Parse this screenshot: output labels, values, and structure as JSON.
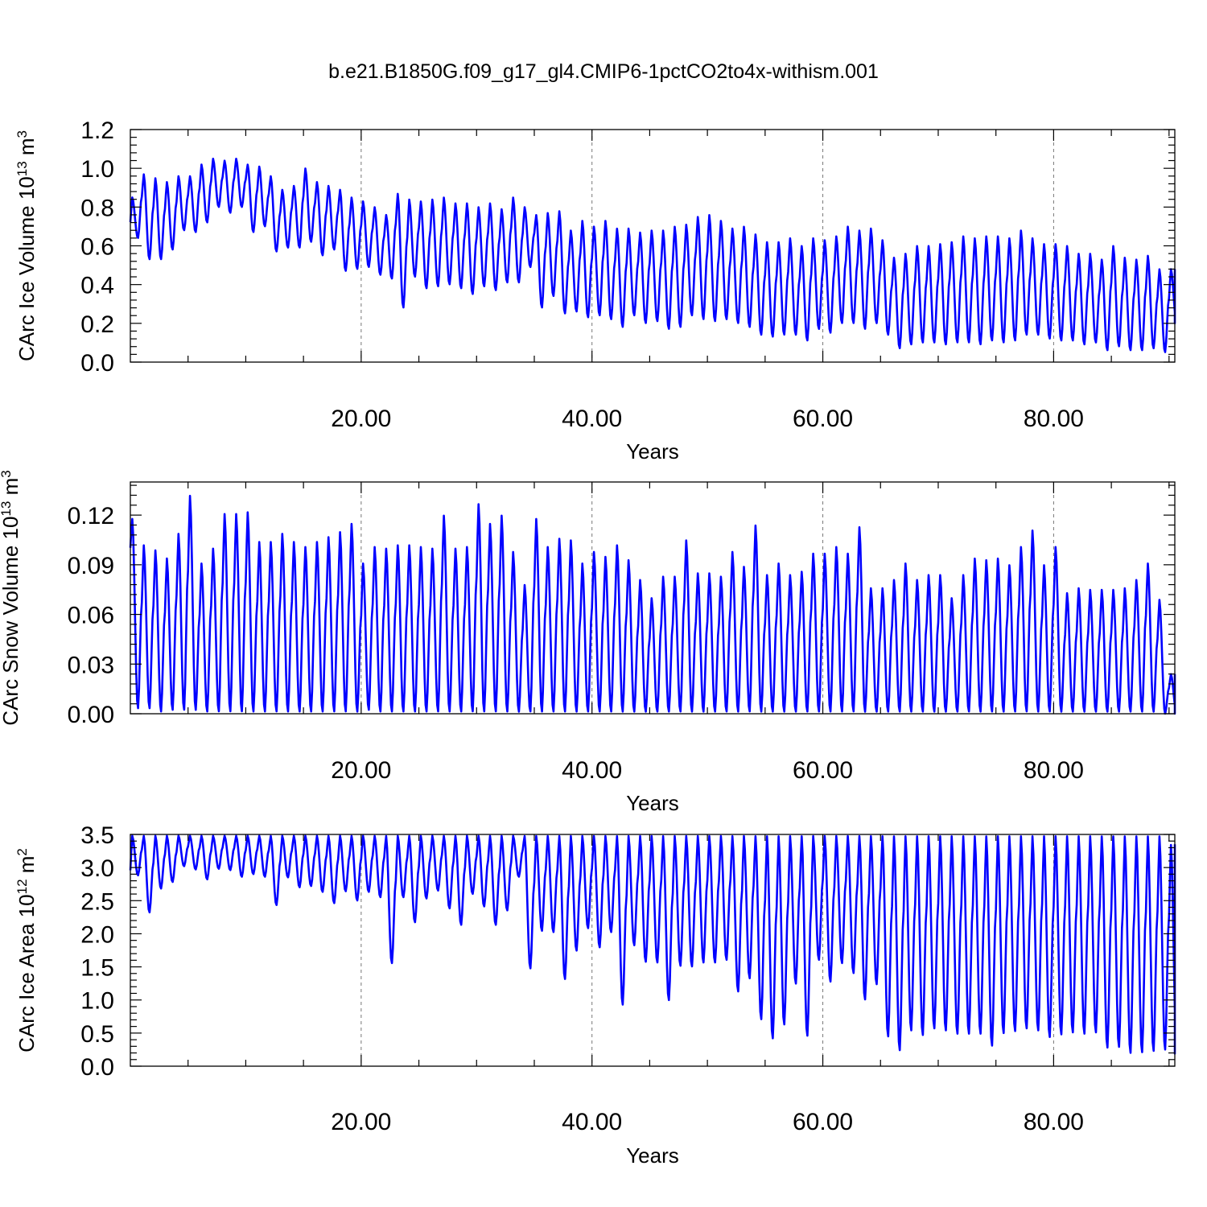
{
  "title": "b.e21.B1850G.f09_g17_gl4.CMIP6-1pctCO2to4x-withism.001",
  "chart_data": [
    {
      "type": "line",
      "ylabel": "CArc Ice Volume 10",
      "ylabel_exp": "13",
      "ylabel_unit": " m",
      "ylabel_unit_exp": "3",
      "xlabel": "Years",
      "xlim": [
        0,
        90.5
      ],
      "ylim": [
        0,
        1.2
      ],
      "xticks": [
        20,
        40,
        60,
        80
      ],
      "xtick_labels": [
        "20.00",
        "40.00",
        "60.00",
        "80.00"
      ],
      "yticks": [
        0,
        0.2,
        0.4,
        0.6,
        0.8,
        1.0,
        1.2
      ],
      "ytick_labels": [
        "0.0",
        "0.2",
        "0.4",
        "0.6",
        "0.8",
        "1.0",
        "1.2"
      ],
      "grid": "dashed vertical at major x ticks",
      "color": "#0000ff",
      "series": [
        {
          "x": [
            0,
            1,
            2,
            3,
            4,
            5,
            6,
            7,
            8,
            9,
            10,
            11,
            12,
            13,
            14,
            15,
            16,
            17,
            18,
            19,
            20,
            21,
            22,
            23,
            24,
            25,
            26,
            27,
            28,
            29,
            30,
            31,
            32,
            33,
            34,
            35,
            36,
            37,
            38,
            39,
            40,
            41,
            42,
            43,
            44,
            45,
            46,
            47,
            48,
            49,
            50,
            51,
            52,
            53,
            54,
            55,
            56,
            57,
            58,
            59,
            60,
            61,
            62,
            63,
            64,
            65,
            66,
            67,
            68,
            69,
            70,
            71,
            72,
            73,
            74,
            75,
            76,
            77,
            78,
            79,
            80,
            81,
            82,
            83,
            84,
            85,
            86,
            87,
            88,
            89,
            90
          ],
          "annual_max": [
            0.85,
            0.97,
            0.95,
            0.93,
            0.96,
            0.96,
            1.02,
            1.05,
            1.04,
            1.05,
            1.02,
            1.01,
            0.96,
            0.89,
            0.91,
            1.0,
            0.93,
            0.91,
            0.89,
            0.85,
            0.83,
            0.8,
            0.76,
            0.87,
            0.84,
            0.83,
            0.84,
            0.85,
            0.82,
            0.82,
            0.8,
            0.82,
            0.79,
            0.85,
            0.8,
            0.76,
            0.77,
            0.78,
            0.68,
            0.73,
            0.7,
            0.73,
            0.69,
            0.69,
            0.67,
            0.68,
            0.68,
            0.7,
            0.71,
            0.75,
            0.76,
            0.73,
            0.69,
            0.7,
            0.66,
            0.62,
            0.62,
            0.64,
            0.6,
            0.64,
            0.63,
            0.65,
            0.7,
            0.68,
            0.69,
            0.63,
            0.54,
            0.56,
            0.6,
            0.6,
            0.61,
            0.62,
            0.65,
            0.64,
            0.65,
            0.65,
            0.64,
            0.68,
            0.64,
            0.61,
            0.61,
            0.6,
            0.56,
            0.56,
            0.53,
            0.6,
            0.54,
            0.53,
            0.55,
            0.48,
            0.48
          ],
          "annual_min": [
            0.64,
            0.53,
            0.53,
            0.58,
            0.68,
            0.67,
            0.72,
            0.8,
            0.77,
            0.8,
            0.67,
            0.7,
            0.57,
            0.59,
            0.59,
            0.62,
            0.55,
            0.58,
            0.47,
            0.48,
            0.49,
            0.45,
            0.43,
            0.28,
            0.44,
            0.38,
            0.39,
            0.4,
            0.38,
            0.35,
            0.39,
            0.37,
            0.41,
            0.41,
            0.49,
            0.28,
            0.34,
            0.25,
            0.26,
            0.23,
            0.24,
            0.22,
            0.18,
            0.24,
            0.2,
            0.21,
            0.17,
            0.18,
            0.24,
            0.22,
            0.21,
            0.22,
            0.2,
            0.18,
            0.14,
            0.13,
            0.14,
            0.14,
            0.11,
            0.17,
            0.15,
            0.2,
            0.2,
            0.17,
            0.2,
            0.14,
            0.07,
            0.09,
            0.1,
            0.1,
            0.09,
            0.1,
            0.1,
            0.09,
            0.11,
            0.1,
            0.11,
            0.14,
            0.14,
            0.12,
            0.11,
            0.11,
            0.09,
            0.1,
            0.06,
            0.08,
            0.06,
            0.06,
            0.07,
            0.05,
            0.2
          ]
        }
      ]
    },
    {
      "type": "line",
      "ylabel": "CArc Snow Volume 10",
      "ylabel_exp": "13",
      "ylabel_unit": " m",
      "ylabel_unit_exp": "3",
      "xlabel": "Years",
      "xlim": [
        0,
        90.5
      ],
      "ylim": [
        0,
        0.14
      ],
      "xticks": [
        20,
        40,
        60,
        80
      ],
      "xtick_labels": [
        "20.00",
        "40.00",
        "60.00",
        "80.00"
      ],
      "yticks": [
        0,
        0.03,
        0.06,
        0.09,
        0.12
      ],
      "ytick_labels": [
        "0.00",
        "0.03",
        "0.06",
        "0.09",
        "0.12"
      ],
      "grid": "dashed vertical at major x ticks",
      "color": "#0000ff",
      "series": [
        {
          "x": [
            0,
            1,
            2,
            3,
            4,
            5,
            6,
            7,
            8,
            9,
            10,
            11,
            12,
            13,
            14,
            15,
            16,
            17,
            18,
            19,
            20,
            21,
            22,
            23,
            24,
            25,
            26,
            27,
            28,
            29,
            30,
            31,
            32,
            33,
            34,
            35,
            36,
            37,
            38,
            39,
            40,
            41,
            42,
            43,
            44,
            45,
            46,
            47,
            48,
            49,
            50,
            51,
            52,
            53,
            54,
            55,
            56,
            57,
            58,
            59,
            60,
            61,
            62,
            63,
            64,
            65,
            66,
            67,
            68,
            69,
            70,
            71,
            72,
            73,
            74,
            75,
            76,
            77,
            78,
            79,
            80,
            81,
            82,
            83,
            84,
            85,
            86,
            87,
            88,
            89,
            90
          ],
          "annual_max": [
            0.118,
            0.102,
            0.099,
            0.094,
            0.109,
            0.132,
            0.091,
            0.1,
            0.121,
            0.121,
            0.122,
            0.104,
            0.104,
            0.109,
            0.104,
            0.101,
            0.104,
            0.107,
            0.11,
            0.115,
            0.091,
            0.101,
            0.1,
            0.102,
            0.102,
            0.101,
            0.1,
            0.12,
            0.1,
            0.101,
            0.127,
            0.115,
            0.12,
            0.098,
            0.078,
            0.118,
            0.101,
            0.106,
            0.105,
            0.091,
            0.098,
            0.095,
            0.102,
            0.093,
            0.081,
            0.07,
            0.083,
            0.083,
            0.105,
            0.085,
            0.085,
            0.083,
            0.098,
            0.089,
            0.114,
            0.084,
            0.091,
            0.084,
            0.086,
            0.097,
            0.097,
            0.101,
            0.097,
            0.113,
            0.076,
            0.076,
            0.081,
            0.091,
            0.081,
            0.084,
            0.084,
            0.07,
            0.084,
            0.094,
            0.093,
            0.094,
            0.09,
            0.101,
            0.111,
            0.09,
            0.101,
            0.073,
            0.076,
            0.075,
            0.075,
            0.075,
            0.076,
            0.081,
            0.091,
            0.069,
            0.024
          ],
          "annual_min": [
            0.003,
            0.003,
            0.001,
            0.002,
            0.002,
            0.002,
            0.001,
            0.001,
            0.001,
            0.001,
            0.001,
            0.001,
            0.001,
            0.001,
            0.001,
            0.001,
            0.001,
            0.001,
            0.001,
            0.001,
            0.002,
            0.001,
            0.001,
            0.001,
            0.001,
            0.001,
            0.001,
            0.001,
            0.001,
            0.001,
            0.001,
            0.001,
            0.001,
            0.001,
            0.001,
            0.001,
            0.001,
            0.001,
            0.001,
            0.001,
            0.001,
            0.001,
            0.001,
            0.001,
            0.001,
            0.001,
            0.001,
            0.001,
            0.001,
            0.001,
            0.001,
            0.001,
            0.001,
            0.001,
            0.001,
            0.001,
            0.001,
            0.001,
            0.001,
            0.001,
            0.001,
            0.001,
            0.001,
            0.001,
            0.001,
            0.001,
            0.001,
            0.001,
            0.001,
            0.001,
            0.001,
            0.001,
            0.001,
            0.001,
            0.001,
            0.001,
            0.001,
            0.001,
            0.001,
            0.001,
            0.001,
            0.001,
            0.001,
            0.001,
            0.001,
            0.001,
            0.001,
            0.001,
            0.001,
            0.0,
            0.0
          ]
        }
      ]
    },
    {
      "type": "line",
      "ylabel": "CArc Ice Area 10",
      "ylabel_exp": "12",
      "ylabel_unit": " m",
      "ylabel_unit_exp": "2",
      "xlabel": "Years",
      "xlim": [
        0,
        90.5
      ],
      "ylim": [
        0,
        3.5
      ],
      "xticks": [
        20,
        40,
        60,
        80
      ],
      "xtick_labels": [
        "20.00",
        "40.00",
        "60.00",
        "80.00"
      ],
      "yticks": [
        0,
        0.5,
        1.0,
        1.5,
        2.0,
        2.5,
        3.0,
        3.5
      ],
      "ytick_labels": [
        "0.0",
        "0.5",
        "1.0",
        "1.5",
        "2.0",
        "2.5",
        "3.0",
        "3.5"
      ],
      "grid": "dashed vertical at major x ticks",
      "color": "#0000ff",
      "series": [
        {
          "x": [
            0,
            1,
            2,
            3,
            4,
            5,
            6,
            7,
            8,
            9,
            10,
            11,
            12,
            13,
            14,
            15,
            16,
            17,
            18,
            19,
            20,
            21,
            22,
            23,
            24,
            25,
            26,
            27,
            28,
            29,
            30,
            31,
            32,
            33,
            34,
            35,
            36,
            37,
            38,
            39,
            40,
            41,
            42,
            43,
            44,
            45,
            46,
            47,
            48,
            49,
            50,
            51,
            52,
            53,
            54,
            55,
            56,
            57,
            58,
            59,
            60,
            61,
            62,
            63,
            64,
            65,
            66,
            67,
            68,
            69,
            70,
            71,
            72,
            73,
            74,
            75,
            76,
            77,
            78,
            79,
            80,
            81,
            82,
            83,
            84,
            85,
            86,
            87,
            88,
            89,
            90
          ],
          "annual_max": [
            3.48,
            3.48,
            3.48,
            3.48,
            3.48,
            3.48,
            3.48,
            3.48,
            3.48,
            3.48,
            3.48,
            3.48,
            3.48,
            3.48,
            3.48,
            3.48,
            3.48,
            3.48,
            3.48,
            3.48,
            3.48,
            3.48,
            3.48,
            3.48,
            3.48,
            3.48,
            3.48,
            3.48,
            3.48,
            3.48,
            3.48,
            3.48,
            3.48,
            3.48,
            3.48,
            3.48,
            3.48,
            3.48,
            3.48,
            3.48,
            3.48,
            3.48,
            3.48,
            3.48,
            3.48,
            3.48,
            3.48,
            3.48,
            3.48,
            3.48,
            3.48,
            3.48,
            3.48,
            3.48,
            3.48,
            3.48,
            3.48,
            3.48,
            3.48,
            3.48,
            3.48,
            3.48,
            3.48,
            3.48,
            3.48,
            3.48,
            3.48,
            3.48,
            3.48,
            3.48,
            3.48,
            3.48,
            3.48,
            3.48,
            3.48,
            3.48,
            3.48,
            3.48,
            3.48,
            3.48,
            3.48,
            3.48,
            3.48,
            3.48,
            3.48,
            3.48,
            3.48,
            3.48,
            3.48,
            3.48,
            3.35
          ],
          "annual_min": [
            2.88,
            2.32,
            2.68,
            2.78,
            3.02,
            2.97,
            2.82,
            2.98,
            2.96,
            2.86,
            2.9,
            2.86,
            2.43,
            2.85,
            2.7,
            2.72,
            2.63,
            2.46,
            2.64,
            2.5,
            2.63,
            2.55,
            1.55,
            2.55,
            2.17,
            2.53,
            2.65,
            2.38,
            2.13,
            2.6,
            2.41,
            2.13,
            2.35,
            2.86,
            1.47,
            2.04,
            2.02,
            1.31,
            1.74,
            2.08,
            1.79,
            2.02,
            0.92,
            1.82,
            1.57,
            1.56,
            0.99,
            1.51,
            1.5,
            1.56,
            1.56,
            1.6,
            1.12,
            1.32,
            0.7,
            0.41,
            0.62,
            1.24,
            0.45,
            1.6,
            1.27,
            1.55,
            1.4,
            1.0,
            1.23,
            0.44,
            0.23,
            0.53,
            0.46,
            0.56,
            0.53,
            0.48,
            0.48,
            0.48,
            0.3,
            0.49,
            0.52,
            0.56,
            0.53,
            0.43,
            0.47,
            0.5,
            0.48,
            0.5,
            0.27,
            0.28,
            0.19,
            0.2,
            0.22,
            0.24,
            0.18
          ]
        }
      ]
    }
  ]
}
